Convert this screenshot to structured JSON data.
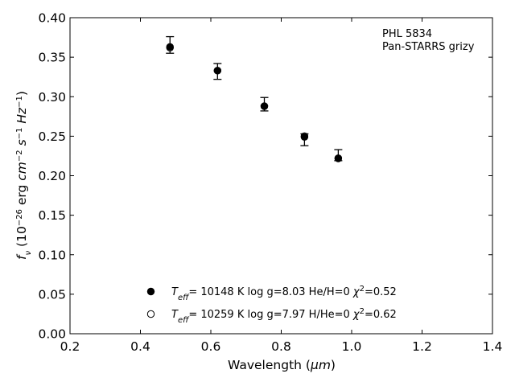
{
  "chart_data": {
    "type": "scatter",
    "annotations": [
      "PHL 5834",
      "Pan-STARRS grizy"
    ],
    "xlabel": {
      "text": "Wavelength (",
      "unit": "μm",
      "close": ")"
    },
    "ylabel": {
      "f": "f",
      "nu": "ν",
      "open": " (10",
      "e1": "−26",
      "mid": " erg ",
      "cm": "cm",
      "e2": "−2",
      "s": "s",
      "e3": "−1",
      "hz": "Hz",
      "e4": "−1",
      "close": ")"
    },
    "xlim": [
      0.2,
      1.4
    ],
    "ylim": [
      0.0,
      0.4
    ],
    "xticks": [
      "0.2",
      "0.4",
      "0.6",
      "0.8",
      "1.0",
      "1.2",
      "1.4"
    ],
    "yticks": [
      "0.00",
      "0.05",
      "0.10",
      "0.15",
      "0.20",
      "0.25",
      "0.30",
      "0.35",
      "0.40"
    ],
    "grid": false,
    "observed": {
      "x": [
        0.484,
        0.619,
        0.752,
        0.866,
        0.962
      ],
      "y": [
        0.365,
        0.332,
        0.29,
        0.248,
        0.222
      ],
      "yerr_low": [
        0.355,
        0.322,
        0.282,
        0.238,
        0.219
      ],
      "yerr_high": [
        0.376,
        0.342,
        0.299,
        0.253,
        0.233
      ]
    },
    "series": [
      {
        "marker": "filled-circle",
        "label": {
          "T": "T",
          "sub": "eff",
          "text": "= 10148 K  log g=8.03  He/H=0  ",
          "chi": "χ",
          "sup": "2",
          "val": "=0.52"
        },
        "x": [
          0.484,
          0.619,
          0.752,
          0.866,
          0.962
        ],
        "y": [
          0.363,
          0.333,
          0.288,
          0.249,
          0.222
        ]
      },
      {
        "marker": "open-circle",
        "label": {
          "T": "T",
          "sub": "eff",
          "text": "= 10259 K  log g=7.97  H/He=0  ",
          "chi": "χ",
          "sup": "2",
          "val": "=0.62"
        },
        "x": [
          0.484,
          0.619,
          0.752,
          0.866,
          0.962
        ],
        "y": [
          0.362,
          0.333,
          0.288,
          0.25,
          0.222
        ]
      }
    ],
    "legend_position": "lower-center"
  }
}
